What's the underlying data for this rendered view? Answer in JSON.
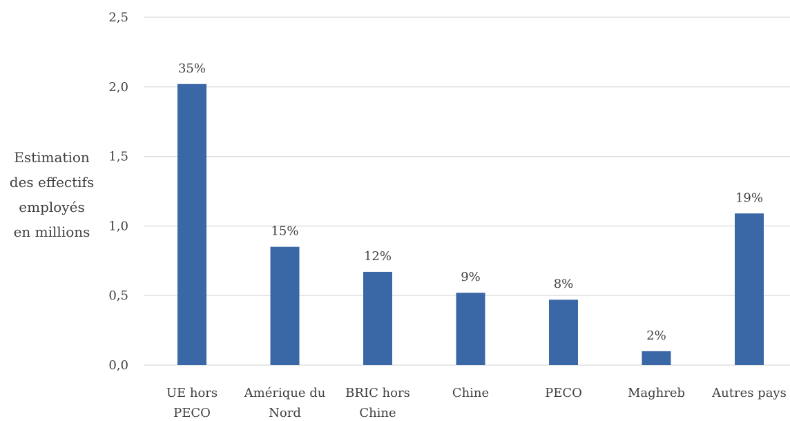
{
  "chart_data": {
    "type": "bar",
    "title": "",
    "xlabel": "",
    "ylabel": "Estimation des effectifs employés en millions",
    "ylabel_lines": [
      "Estimation",
      "des effectifs",
      "employés",
      "en millions"
    ],
    "ylim": [
      0,
      2.5
    ],
    "yticks": [
      "0,0",
      "0,5",
      "1,0",
      "1,5",
      "2,0",
      "2,5"
    ],
    "ytick_values": [
      0,
      0.5,
      1.0,
      1.5,
      2.0,
      2.5
    ],
    "grid": true,
    "legend": "none",
    "categories": [
      "UE hors PECO",
      "Amérique du Nord",
      "BRIC hors Chine",
      "Chine",
      "PECO",
      "Maghreb",
      "Autres pays"
    ],
    "category_lines": [
      [
        "UE hors",
        "PECO"
      ],
      [
        "Amérique du",
        "Nord"
      ],
      [
        "BRIC hors",
        "Chine"
      ],
      [
        "Chine"
      ],
      [
        "PECO"
      ],
      [
        "Maghreb"
      ],
      [
        "Autres pays"
      ]
    ],
    "values": [
      2.02,
      0.85,
      0.67,
      0.52,
      0.47,
      0.1,
      1.09
    ],
    "data_labels": [
      "35%",
      "15%",
      "12%",
      "9%",
      "8%",
      "2%",
      "19%"
    ],
    "colors": {
      "bar": "#3a67a6",
      "grid": "#d9d9d9",
      "text": "#404040"
    }
  }
}
